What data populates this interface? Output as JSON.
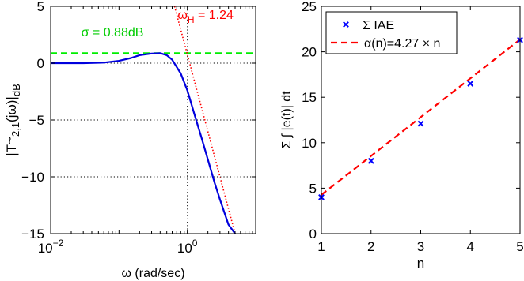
{
  "chart_data": [
    {
      "type": "line",
      "x_scale": "log",
      "xlim": [
        0.01,
        10
      ],
      "ylim": [
        -15,
        5
      ],
      "xticks": [
        {
          "value": 0.01,
          "base": "10",
          "exp": "−2"
        },
        {
          "value": 1,
          "base": "10",
          "exp": "0"
        }
      ],
      "yticks": [
        {
          "value": -15,
          "label": "−15"
        },
        {
          "value": -10,
          "label": "−10"
        },
        {
          "value": -5,
          "label": "−5"
        },
        {
          "value": 0,
          "label": "0"
        },
        {
          "value": 5,
          "label": "5"
        }
      ],
      "xlabel": "ω (rad/sec)",
      "ylabel": {
        "main": "|T",
        "tilde": "~",
        "sub": "2,1",
        "mid": "(jω)|",
        "unit": "dB"
      },
      "grid": "dotted lines at ω = 1 and magnitude = −10, −5, 0 dB",
      "series": [
        {
          "style": "solid",
          "color": "#0000dd",
          "x": [
            0.01,
            0.03,
            0.06,
            0.1,
            0.15,
            0.2,
            0.3,
            0.4,
            0.5,
            0.6,
            0.8,
            1.0,
            1.3,
            1.6,
            2.0,
            2.5,
            3.0,
            4.0,
            5.0
          ],
          "y": [
            0.0,
            0.0,
            0.05,
            0.2,
            0.45,
            0.7,
            0.85,
            0.88,
            0.7,
            0.3,
            -0.9,
            -2.4,
            -4.7,
            -6.5,
            -8.5,
            -10.5,
            -12.0,
            -14.2,
            -15.0
          ]
        },
        {
          "style": "dotted",
          "color": "#ff0000",
          "x": [
            0.65,
            5.0
          ],
          "y": [
            5.0,
            -15.0
          ]
        },
        {
          "style": "dashed",
          "color": "#00ee00",
          "x": [
            0.01,
            10
          ],
          "y": [
            0.88,
            0.88
          ]
        }
      ],
      "annotations": [
        {
          "text": "σ = 0.88dB",
          "color": "#00cc00",
          "at_x": 0.028,
          "at_y": 2.35
        },
        {
          "text_base": "ω",
          "text_sub": "H",
          "text_rest": " = 1.24",
          "color": "#ff0000",
          "at_x": 0.72,
          "at_y": 3.9
        }
      ]
    },
    {
      "type": "scatter",
      "xlim": [
        1,
        5
      ],
      "ylim": [
        0,
        25
      ],
      "xticks": [
        1,
        2,
        3,
        4,
        5
      ],
      "yticks": [
        0,
        5,
        10,
        15,
        20,
        25
      ],
      "xlabel": "n",
      "ylabel": "Σ ∫ |e(t)| dt",
      "series": [
        {
          "name": "Σ IAE",
          "marker": "x",
          "color": "#0000ff",
          "x": [
            1,
            2,
            3,
            4,
            5
          ],
          "y": [
            4.0,
            8.0,
            12.1,
            16.5,
            21.3
          ]
        },
        {
          "name": "α(n)=4.27 × n",
          "style": "dashed",
          "color": "#ff0000",
          "x": [
            1,
            5
          ],
          "y": [
            4.27,
            21.35
          ]
        }
      ],
      "legend": "top-left"
    }
  ]
}
